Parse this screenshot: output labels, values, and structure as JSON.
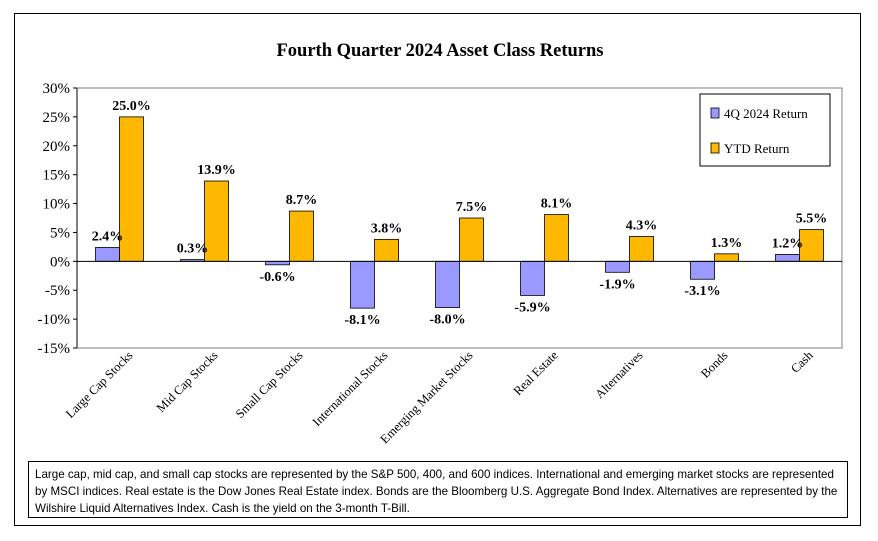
{
  "chart_data": {
    "type": "bar",
    "title": "Fourth Quarter 2024 Asset Class Returns",
    "categories": [
      "Large Cap Stocks",
      "Mid Cap Stocks",
      "Small Cap Stocks",
      "International Stocks",
      "Emerging Market Stocks",
      "Real Estate",
      "Alternatives",
      "Bonds",
      "Cash"
    ],
    "series": [
      {
        "name": "4Q 2024 Return",
        "color": "#9999FF",
        "values": [
          2.4,
          0.3,
          -0.6,
          -8.1,
          -8.0,
          -5.9,
          -1.9,
          -3.1,
          1.2
        ],
        "labels": [
          "2.4%",
          "0.3%",
          "-0.6%",
          "-8.1%",
          "-8.0%",
          "-5.9%",
          "-1.9%",
          "-3.1%",
          "1.2%"
        ]
      },
      {
        "name": "YTD Return",
        "color": "#FFB800",
        "values": [
          25.0,
          13.9,
          8.7,
          3.8,
          7.5,
          8.1,
          4.3,
          1.3,
          5.5
        ],
        "labels": [
          "25.0%",
          "13.9%",
          "8.7%",
          "3.8%",
          "7.5%",
          "8.1%",
          "4.3%",
          "1.3%",
          "5.5%"
        ]
      }
    ],
    "ylim": [
      -15,
      30
    ],
    "yticks": [
      30,
      25,
      20,
      15,
      10,
      5,
      0,
      -5,
      -10,
      -15
    ],
    "ytick_labels": [
      "30%",
      "25%",
      "20%",
      "15%",
      "10%",
      "5%",
      "0%",
      "-5%",
      "-10%",
      "-15%"
    ],
    "legend_position": "top-right",
    "grid": false
  },
  "footnote": "Large cap, mid cap, and small cap stocks are represented by the S&P 500, 400, and 600 indices. International and emerging market stocks are represented by MSCI indices. Real estate is the Dow Jones Real Estate index. Bonds are the Bloomberg U.S. Aggregate Bond Index. Alternatives are represented by the Wilshire Liquid Alternatives Index. Cash is the yield on the 3-month T-Bill."
}
